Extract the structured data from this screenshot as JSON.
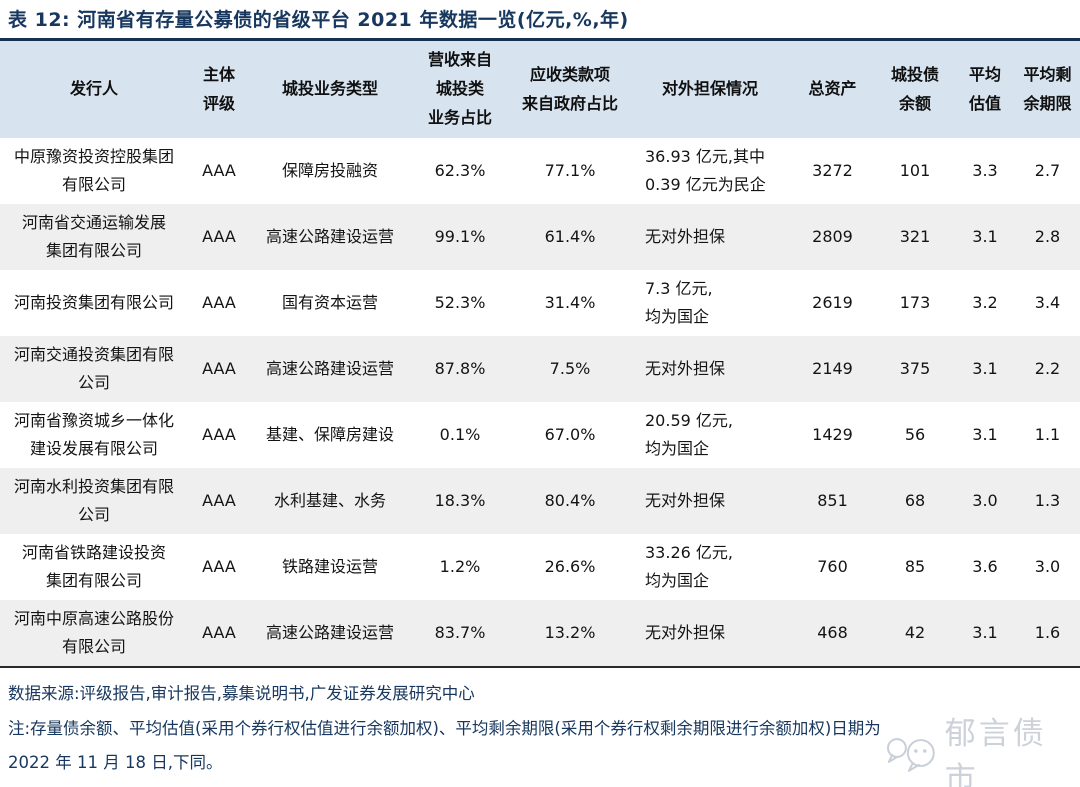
{
  "title": "表 12: 河南省有存量公募债的省级平台 2021 年数据一览(亿元,%,年)",
  "table": {
    "column_order": [
      "issuer",
      "rating",
      "business_type",
      "revenue_from_chengtou_pct",
      "receivables_from_gov_pct",
      "external_guarantee",
      "total_assets",
      "chengtou_bond_balance",
      "avg_valuation",
      "avg_remaining_maturity"
    ],
    "columns": [
      {
        "id": "issuer",
        "label": "发行人"
      },
      {
        "id": "rating",
        "label": "主体\n评级"
      },
      {
        "id": "business_type",
        "label": "城投业务类型"
      },
      {
        "id": "revenue_from_chengtou_pct",
        "label": "营收来自\n城投类\n业务占比"
      },
      {
        "id": "receivables_from_gov_pct",
        "label": "应收类款项\n来自政府占比"
      },
      {
        "id": "external_guarantee",
        "label": "对外担保情况"
      },
      {
        "id": "total_assets",
        "label": "总资产"
      },
      {
        "id": "chengtou_bond_balance",
        "label": "城投债\n余额"
      },
      {
        "id": "avg_valuation",
        "label": "平均\n估值"
      },
      {
        "id": "avg_remaining_maturity",
        "label": "平均剩\n余期限"
      }
    ],
    "rows": [
      {
        "issuer": "中原豫资投资控股集团\n有限公司",
        "rating": "AAA",
        "business_type": "保障房投融资",
        "revenue_from_chengtou_pct": "62.3%",
        "receivables_from_gov_pct": "77.1%",
        "external_guarantee": "36.93 亿元,其中\n0.39 亿元为民企",
        "total_assets": "3272",
        "chengtou_bond_balance": "101",
        "avg_valuation": "3.3",
        "avg_remaining_maturity": "2.7"
      },
      {
        "issuer": "河南省交通运输发展\n集团有限公司",
        "rating": "AAA",
        "business_type": "高速公路建设运营",
        "revenue_from_chengtou_pct": "99.1%",
        "receivables_from_gov_pct": "61.4%",
        "external_guarantee": "无对外担保",
        "total_assets": "2809",
        "chengtou_bond_balance": "321",
        "avg_valuation": "3.1",
        "avg_remaining_maturity": "2.8"
      },
      {
        "issuer": "河南投资集团有限公司",
        "rating": "AAA",
        "business_type": "国有资本运营",
        "revenue_from_chengtou_pct": "52.3%",
        "receivables_from_gov_pct": "31.4%",
        "external_guarantee": "7.3 亿元,\n均为国企",
        "total_assets": "2619",
        "chengtou_bond_balance": "173",
        "avg_valuation": "3.2",
        "avg_remaining_maturity": "3.4"
      },
      {
        "issuer": "河南交通投资集团有限\n公司",
        "rating": "AAA",
        "business_type": "高速公路建设运营",
        "revenue_from_chengtou_pct": "87.8%",
        "receivables_from_gov_pct": "7.5%",
        "external_guarantee": "无对外担保",
        "total_assets": "2149",
        "chengtou_bond_balance": "375",
        "avg_valuation": "3.1",
        "avg_remaining_maturity": "2.2"
      },
      {
        "issuer": "河南省豫资城乡一体化\n建设发展有限公司",
        "rating": "AAA",
        "business_type": "基建、保障房建设",
        "revenue_from_chengtou_pct": "0.1%",
        "receivables_from_gov_pct": "67.0%",
        "external_guarantee": "20.59 亿元,\n均为国企",
        "total_assets": "1429",
        "chengtou_bond_balance": "56",
        "avg_valuation": "3.1",
        "avg_remaining_maturity": "1.1"
      },
      {
        "issuer": "河南水利投资集团有限\n公司",
        "rating": "AAA",
        "business_type": "水利基建、水务",
        "revenue_from_chengtou_pct": "18.3%",
        "receivables_from_gov_pct": "80.4%",
        "external_guarantee": "无对外担保",
        "total_assets": "851",
        "chengtou_bond_balance": "68",
        "avg_valuation": "3.0",
        "avg_remaining_maturity": "1.3"
      },
      {
        "issuer": "河南省铁路建设投资\n集团有限公司",
        "rating": "AAA",
        "business_type": "铁路建设运营",
        "revenue_from_chengtou_pct": "1.2%",
        "receivables_from_gov_pct": "26.6%",
        "external_guarantee": "33.26 亿元,\n均为国企",
        "total_assets": "760",
        "chengtou_bond_balance": "85",
        "avg_valuation": "3.6",
        "avg_remaining_maturity": "3.0"
      },
      {
        "issuer": "河南中原高速公路股份\n有限公司",
        "rating": "AAA",
        "business_type": "高速公路建设运营",
        "revenue_from_chengtou_pct": "83.7%",
        "receivables_from_gov_pct": "13.2%",
        "external_guarantee": "无对外担保",
        "total_assets": "468",
        "chengtou_bond_balance": "42",
        "avg_valuation": "3.1",
        "avg_remaining_maturity": "1.6"
      }
    ]
  },
  "footer": {
    "source": "数据来源:评级报告,审计报告,募集说明书,广发证券发展研究中心",
    "note_line1": "注:存量债余额、平均估值(采用个券行权估值进行余额加权)、平均剩余期限(采用个券行权剩余期限进行余额加权)日期为",
    "note_line2": "2022 年 11 月 18 日,下同。"
  },
  "watermark": {
    "label": "郁言债市"
  },
  "colors": {
    "title_text": "#17375e",
    "header_bg": "#d7e4f0",
    "row_alt_bg": "#efefef",
    "table_rule": "#2a2a2a",
    "body_text": "#141414",
    "footer_text": "#17375e",
    "watermark": "#ccd1da"
  }
}
